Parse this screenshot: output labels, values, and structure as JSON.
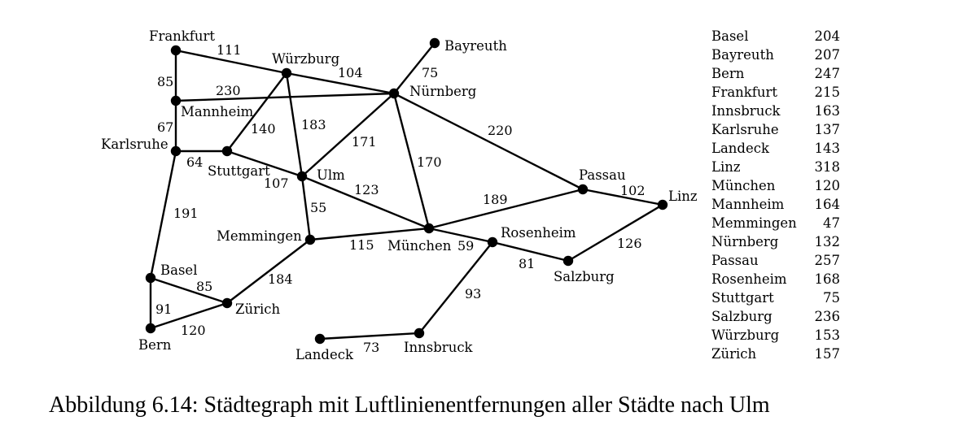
{
  "nodes": [
    {
      "id": "frankfurt",
      "label": "Frankfurt"
    },
    {
      "id": "wuerzburg",
      "label": "Würzburg"
    },
    {
      "id": "bayreuth",
      "label": "Bayreuth"
    },
    {
      "id": "nuernberg",
      "label": "Nürnberg"
    },
    {
      "id": "mannheim",
      "label": "Mannheim"
    },
    {
      "id": "karlsruhe",
      "label": "Karlsruhe"
    },
    {
      "id": "stuttgart",
      "label": "Stuttgart"
    },
    {
      "id": "ulm",
      "label": "Ulm"
    },
    {
      "id": "passau",
      "label": "Passau"
    },
    {
      "id": "linz",
      "label": "Linz"
    },
    {
      "id": "memmingen",
      "label": "Memmingen"
    },
    {
      "id": "muenchen",
      "label": "München"
    },
    {
      "id": "rosenheim",
      "label": "Rosenheim"
    },
    {
      "id": "salzburg",
      "label": "Salzburg"
    },
    {
      "id": "basel",
      "label": "Basel"
    },
    {
      "id": "zuerich",
      "label": "Zürich"
    },
    {
      "id": "bern",
      "label": "Bern"
    },
    {
      "id": "landeck",
      "label": "Landeck"
    },
    {
      "id": "innsbruck",
      "label": "Innsbruck"
    }
  ],
  "edges": [
    {
      "from": "frankfurt",
      "to": "wuerzburg",
      "weight": "111"
    },
    {
      "from": "frankfurt",
      "to": "mannheim",
      "weight": "85"
    },
    {
      "from": "wuerzburg",
      "to": "nuernberg",
      "weight": "104"
    },
    {
      "from": "mannheim",
      "to": "nuernberg",
      "weight": "230"
    },
    {
      "from": "bayreuth",
      "to": "nuernberg",
      "weight": "75"
    },
    {
      "from": "mannheim",
      "to": "karlsruhe",
      "weight": "67"
    },
    {
      "from": "wuerzburg",
      "to": "stuttgart",
      "weight": "140"
    },
    {
      "from": "wuerzburg",
      "to": "ulm",
      "weight": "183"
    },
    {
      "from": "nuernberg",
      "to": "ulm",
      "weight": "171"
    },
    {
      "from": "nuernberg",
      "to": "muenchen",
      "weight": "170"
    },
    {
      "from": "nuernberg",
      "to": "passau",
      "weight": "220"
    },
    {
      "from": "karlsruhe",
      "to": "stuttgart",
      "weight": "64"
    },
    {
      "from": "stuttgart",
      "to": "ulm",
      "weight": "107"
    },
    {
      "from": "karlsruhe",
      "to": "basel",
      "weight": "191"
    },
    {
      "from": "ulm",
      "to": "muenchen",
      "weight": "123"
    },
    {
      "from": "ulm",
      "to": "memmingen",
      "weight": "55"
    },
    {
      "from": "muenchen",
      "to": "passau",
      "weight": "189"
    },
    {
      "from": "passau",
      "to": "linz",
      "weight": "102"
    },
    {
      "from": "memmingen",
      "to": "muenchen",
      "weight": "115"
    },
    {
      "from": "memmingen",
      "to": "zuerich",
      "weight": "184"
    },
    {
      "from": "muenchen",
      "to": "rosenheim",
      "weight": "59"
    },
    {
      "from": "rosenheim",
      "to": "salzburg",
      "weight": "81"
    },
    {
      "from": "salzburg",
      "to": "linz",
      "weight": "126"
    },
    {
      "from": "rosenheim",
      "to": "innsbruck",
      "weight": "93"
    },
    {
      "from": "basel",
      "to": "zuerich",
      "weight": "85"
    },
    {
      "from": "basel",
      "to": "bern",
      "weight": "91"
    },
    {
      "from": "bern",
      "to": "zuerich",
      "weight": "120"
    },
    {
      "from": "landeck",
      "to": "innsbruck",
      "weight": "73"
    }
  ],
  "distances": [
    {
      "city": "Basel",
      "value": "204"
    },
    {
      "city": "Bayreuth",
      "value": "207"
    },
    {
      "city": "Bern",
      "value": "247"
    },
    {
      "city": "Frankfurt",
      "value": "215"
    },
    {
      "city": "Innsbruck",
      "value": "163"
    },
    {
      "city": "Karlsruhe",
      "value": "137"
    },
    {
      "city": "Landeck",
      "value": "143"
    },
    {
      "city": "Linz",
      "value": "318"
    },
    {
      "city": "München",
      "value": "120"
    },
    {
      "city": "Mannheim",
      "value": "164"
    },
    {
      "city": "Memmingen",
      "value": "47"
    },
    {
      "city": "Nürnberg",
      "value": "132"
    },
    {
      "city": "Passau",
      "value": "257"
    },
    {
      "city": "Rosenheim",
      "value": "168"
    },
    {
      "city": "Stuttgart",
      "value": "75"
    },
    {
      "city": "Salzburg",
      "value": "236"
    },
    {
      "city": "Würzburg",
      "value": "153"
    },
    {
      "city": "Zürich",
      "value": "157"
    }
  ],
  "caption": "Abbildung 6.14: Städtegraph mit Luftlinienentfernungen aller Städte nach Ulm"
}
